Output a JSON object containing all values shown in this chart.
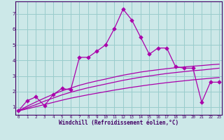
{
  "xlabel": "Windchill (Refroidissement éolien,°C)",
  "bg_color": "#cce8e8",
  "grid_color": "#99cccc",
  "line_color": "#aa00aa",
  "spine_color": "#440066",
  "x_main": [
    0,
    1,
    2,
    3,
    4,
    5,
    6,
    7,
    8,
    9,
    10,
    11,
    12,
    13,
    14,
    15,
    16,
    17,
    18,
    19,
    20,
    21,
    22,
    23
  ],
  "y_main": [
    0.75,
    1.4,
    1.65,
    1.1,
    1.8,
    2.2,
    2.1,
    4.2,
    4.2,
    4.6,
    5.0,
    6.05,
    7.3,
    6.6,
    5.5,
    4.4,
    4.8,
    4.8,
    3.6,
    3.5,
    3.5,
    1.3,
    2.6,
    2.6
  ],
  "y_line_low": [
    0.75,
    0.88,
    1.02,
    1.16,
    1.3,
    1.44,
    1.57,
    1.68,
    1.79,
    1.89,
    1.99,
    2.09,
    2.18,
    2.27,
    2.35,
    2.43,
    2.5,
    2.57,
    2.63,
    2.69,
    2.75,
    2.8,
    2.85,
    2.9
  ],
  "y_line_mid": [
    0.75,
    0.95,
    1.15,
    1.38,
    1.58,
    1.78,
    1.95,
    2.1,
    2.24,
    2.36,
    2.48,
    2.6,
    2.72,
    2.82,
    2.92,
    3.0,
    3.08,
    3.16,
    3.22,
    3.28,
    3.34,
    3.38,
    3.44,
    3.5
  ],
  "y_line_high": [
    0.75,
    1.05,
    1.32,
    1.58,
    1.82,
    2.04,
    2.22,
    2.4,
    2.55,
    2.68,
    2.8,
    2.93,
    3.05,
    3.15,
    3.25,
    3.33,
    3.4,
    3.47,
    3.53,
    3.58,
    3.63,
    3.67,
    3.72,
    3.76
  ],
  "ylim": [
    0.5,
    7.8
  ],
  "xlim": [
    -0.3,
    23.3
  ],
  "yticks": [
    1,
    2,
    3,
    4,
    5,
    6,
    7
  ],
  "xtick_labels": [
    "0",
    "1",
    "2",
    "3",
    "4",
    "5",
    "6",
    "7",
    "8",
    "9",
    "10",
    "11",
    "12",
    "13",
    "14",
    "15",
    "16",
    "17",
    "18",
    "19",
    "20",
    "21",
    "22",
    "23"
  ],
  "marker": "D",
  "markersize": 2.8,
  "lw": 0.9
}
